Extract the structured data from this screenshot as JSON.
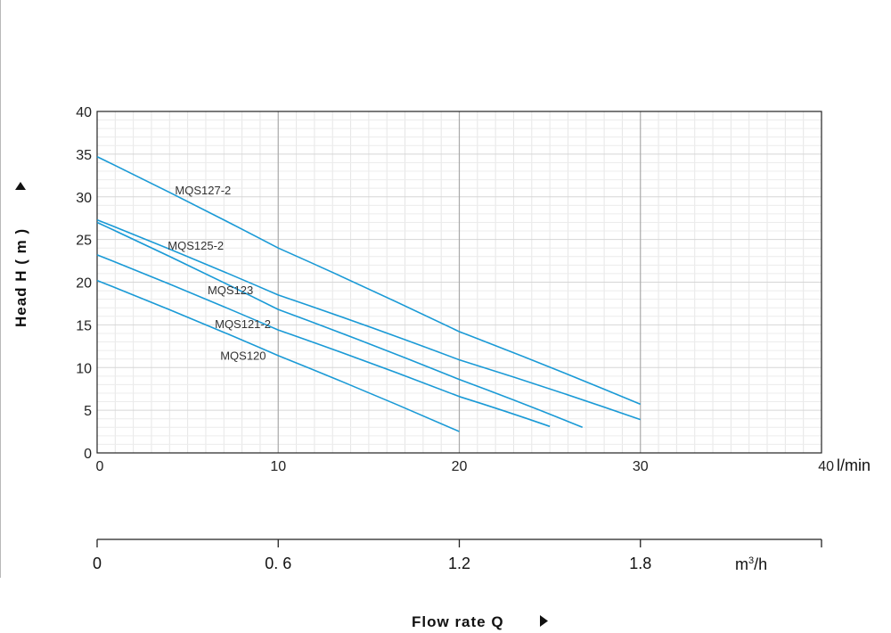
{
  "chart_data": {
    "type": "line",
    "x_unit": "l/min",
    "x2_unit_base": "m",
    "x2_unit_sup": "3",
    "x2_unit_tail": "/h",
    "ylabel": "Head H ( m )",
    "xlabel": "Flow rate Q",
    "xlim": [
      0,
      40
    ],
    "ylim": [
      0,
      40
    ],
    "x_ticks": [
      "0",
      "10",
      "20",
      "30",
      "40"
    ],
    "y_ticks": [
      "0",
      "5",
      "10",
      "15",
      "20",
      "25",
      "30",
      "35",
      "40"
    ],
    "x2_ticks": [
      {
        "label": "0",
        "value": 0
      },
      {
        "label": "0. 6",
        "value": 0.6
      },
      {
        "label": "1.2",
        "value": 1.2
      },
      {
        "label": "1.8",
        "value": 1.8
      }
    ],
    "x2_max": 2.4,
    "grid": true,
    "line_color": "#1a9ad6",
    "series": [
      {
        "name": "MQS127-2",
        "points": [
          [
            0,
            34.7
          ],
          [
            10,
            24.0
          ],
          [
            20,
            14.2
          ],
          [
            30,
            5.7
          ]
        ]
      },
      {
        "name": "MQS125-2",
        "points": [
          [
            0,
            27.3
          ],
          [
            10,
            18.5
          ],
          [
            20,
            10.9
          ],
          [
            30,
            3.9
          ]
        ]
      },
      {
        "name": "MQS123",
        "points": [
          [
            0,
            27.0
          ],
          [
            10,
            16.8
          ],
          [
            20,
            8.6
          ],
          [
            26.8,
            3.0
          ]
        ]
      },
      {
        "name": "MQS121-2",
        "points": [
          [
            0,
            23.2
          ],
          [
            10,
            14.4
          ],
          [
            20,
            6.6
          ],
          [
            25,
            3.1
          ]
        ]
      },
      {
        "name": "MQS120",
        "points": [
          [
            0,
            20.2
          ],
          [
            10,
            11.4
          ],
          [
            20,
            2.5
          ]
        ]
      }
    ]
  }
}
